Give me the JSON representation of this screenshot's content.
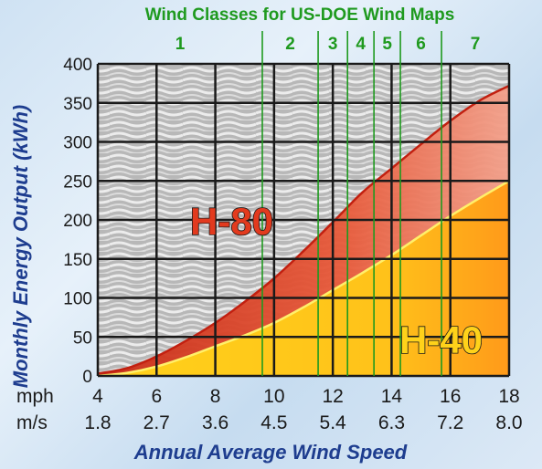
{
  "chart_data": {
    "type": "area",
    "title": "Wind Classes for US-DOE Wind Maps",
    "ylabel": "Monthly Energy Output (kWh)",
    "xlabel": "Annual Average Wind Speed",
    "ylim": [
      0,
      400
    ],
    "xlim": [
      4,
      18
    ],
    "y_ticks": [
      "0",
      "50",
      "100",
      "150",
      "200",
      "250",
      "300",
      "350",
      "400"
    ],
    "x_ticks_mph": [
      "4",
      "6",
      "8",
      "10",
      "12",
      "14",
      "16",
      "18"
    ],
    "x_ticks_ms": [
      "1.8",
      "2.7",
      "3.6",
      "4.5",
      "5.4",
      "6.3",
      "7.2",
      "8.0"
    ],
    "x_unit_mph": "mph",
    "x_unit_ms": "m/s",
    "grid": true,
    "wind_classes": {
      "labels": [
        "1",
        "2",
        "3",
        "4",
        "5",
        "6",
        "7"
      ],
      "boundaries_mph": [
        9.6,
        11.5,
        12.5,
        13.4,
        14.3,
        15.7
      ]
    },
    "series": [
      {
        "name": "H-80",
        "color": "#e23a1e",
        "x": [
          4,
          5,
          6,
          7,
          8,
          9,
          10,
          11,
          12,
          13,
          14,
          15,
          16,
          17,
          18
        ],
        "values": [
          3,
          10,
          25,
          45,
          68,
          95,
          125,
          160,
          197,
          235,
          266,
          297,
          327,
          353,
          372
        ]
      },
      {
        "name": "H-40",
        "color": "#ffd21a",
        "x": [
          4,
          5,
          6,
          7,
          8,
          9,
          10,
          11,
          12,
          13,
          14,
          15,
          16,
          17,
          18
        ],
        "values": [
          0,
          4,
          12,
          24,
          38,
          52,
          68,
          88,
          110,
          132,
          155,
          180,
          205,
          228,
          250
        ]
      }
    ]
  }
}
